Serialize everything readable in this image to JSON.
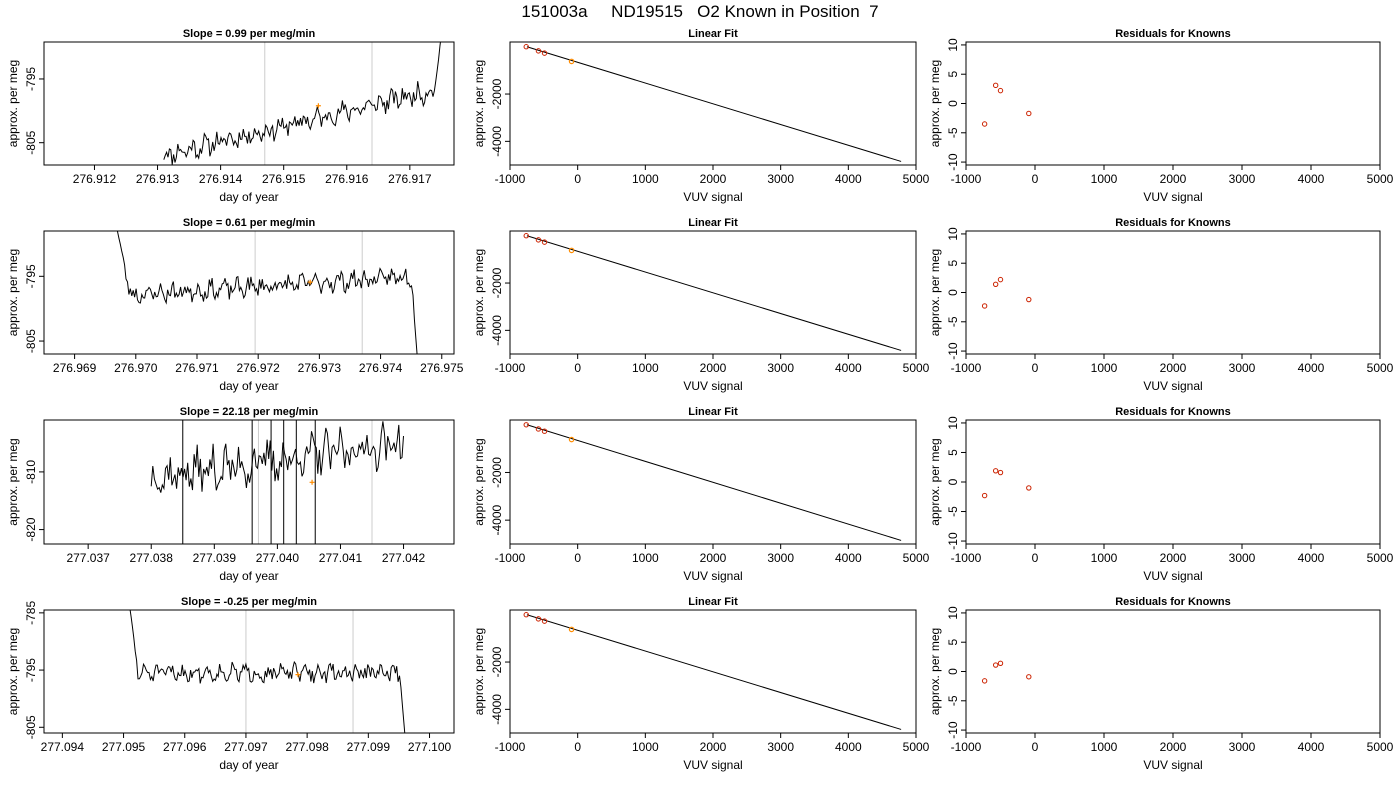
{
  "figure": {
    "title": "151003a     ND19515   O2 Known in Position  7"
  },
  "style": {
    "line_color": "#000000",
    "gridline_color": "#cccccc",
    "sample_color": "#ff8c00",
    "residual_color": "#cc2200",
    "axis_color": "#000000"
  },
  "chart_data": [
    {
      "type": "line",
      "row": 0,
      "col": 0,
      "title": "Slope =  0.99  per meg/min",
      "xlabel": "day of year",
      "ylabel": "approx. per meg",
      "xlim": [
        276.9112,
        276.9177
      ],
      "ylim": [
        -808.5,
        -789.2
      ],
      "xticks": [
        276.912,
        276.913,
        276.914,
        276.915,
        276.916,
        276.917
      ],
      "xtick_labels": [
        "276.912",
        "276.913",
        "276.914",
        "276.915",
        "276.916",
        "276.917"
      ],
      "yticks": [
        -795,
        -805
      ],
      "ytick_labels": [
        "-795",
        "-805"
      ],
      "vlines": [
        276.9147,
        276.9164
      ],
      "series": [
        {
          "x_start": 276.9131,
          "x_end": 276.9175,
          "n": 200,
          "base_start": -807.0,
          "base_end": -796.5,
          "noise": 1.3,
          "seed": 11,
          "head": null,
          "tail": {
            "to": -788.0,
            "n": 5
          }
        }
      ],
      "sample_point": [
        276.91555,
        -799.2
      ]
    },
    {
      "type": "line",
      "row": 1,
      "col": 0,
      "title": "Slope =  0.61  per meg/min",
      "xlabel": "day of year",
      "ylabel": "approx. per meg",
      "xlim": [
        276.9685,
        276.9752
      ],
      "ylim": [
        -807.0,
        -788.0
      ],
      "xticks": [
        276.969,
        276.97,
        276.971,
        276.972,
        276.973,
        276.974,
        276.975
      ],
      "xtick_labels": [
        "276.969",
        "276.970",
        "276.971",
        "276.972",
        "276.973",
        "276.974",
        "276.975"
      ],
      "yticks": [
        -795,
        -805
      ],
      "ytick_labels": [
        "-795",
        "-805"
      ],
      "vlines": [
        276.97195,
        276.9737
      ],
      "series": [
        {
          "x_start": 276.9697,
          "x_end": 276.9746,
          "n": 210,
          "base_start": -798.0,
          "base_end": -795.0,
          "noise": 1.2,
          "seed": 23,
          "head": {
            "from": -788.0,
            "n": 9
          },
          "tail": {
            "to": -807.5,
            "n": 4
          }
        }
      ],
      "sample_point": [
        276.97285,
        -795.9
      ]
    },
    {
      "type": "line",
      "row": 2,
      "col": 0,
      "title": "Slope =  22.18  per meg/min",
      "xlabel": "day of year",
      "ylabel": "approx. per meg",
      "xlim": [
        277.0363,
        277.0428
      ],
      "ylim": [
        -822.5,
        -801.0
      ],
      "xticks": [
        277.037,
        277.038,
        277.039,
        277.04,
        277.041,
        277.042
      ],
      "xtick_labels": [
        "277.037",
        "277.038",
        "277.039",
        "277.040",
        "277.041",
        "277.042"
      ],
      "yticks": [
        -810,
        -820
      ],
      "ytick_labels": [
        "-810",
        "-820"
      ],
      "vlines": [
        277.0397,
        277.0415
      ],
      "series": [
        {
          "x_start": 277.038,
          "x_end": 277.042,
          "n": 160,
          "base_start": -811.0,
          "base_end": -805.0,
          "noise": 3.0,
          "seed": 37,
          "head": null,
          "tail": null,
          "spikes": [
            277.0385,
            277.0396,
            277.0399,
            277.0401,
            277.0403,
            277.0406
          ]
        }
      ],
      "sample_point": [
        277.04055,
        -811.8
      ]
    },
    {
      "type": "line",
      "row": 3,
      "col": 0,
      "title": "Slope =  -0.25  per meg/min",
      "xlabel": "day of year",
      "ylabel": "approx. per meg",
      "xlim": [
        277.0937,
        277.1004
      ],
      "ylim": [
        -806.0,
        -784.5
      ],
      "xticks": [
        277.094,
        277.095,
        277.096,
        277.097,
        277.098,
        277.099,
        277.1
      ],
      "xtick_labels": [
        "277.094",
        "277.095",
        "277.096",
        "277.097",
        "277.098",
        "277.099",
        "277.100"
      ],
      "yticks": [
        -785,
        -795,
        -805
      ],
      "ytick_labels": [
        "-785",
        "-795",
        "-805"
      ],
      "vlines": [
        277.097,
        277.09875
      ],
      "series": [
        {
          "x_start": 277.0951,
          "x_end": 277.0996,
          "n": 200,
          "base_start": -795.5,
          "base_end": -795.5,
          "noise": 1.2,
          "seed": 51,
          "head": {
            "from": -784.0,
            "n": 6
          },
          "tail": {
            "to": -806.5,
            "n": 4
          }
        }
      ],
      "sample_point": [
        277.09785,
        -795.8
      ]
    },
    {
      "type": "scatter",
      "row": 0,
      "col": 1,
      "title": "Linear Fit",
      "xlabel": "VUV signal",
      "ylabel": "approx. per meg",
      "xlim": [
        -1000,
        5000
      ],
      "ylim": [
        -5000,
        200
      ],
      "xticks": [
        -1000,
        0,
        1000,
        2000,
        3000,
        4000,
        5000
      ],
      "xtick_labels": [
        "-1000",
        "0",
        "1000",
        "2000",
        "3000",
        "4000",
        "5000"
      ],
      "yticks": [
        -2000,
        -4000
      ],
      "ytick_labels": [
        "-2000",
        "-4000"
      ],
      "fit_line": [
        [
          -750,
          0
        ],
        [
          4780,
          -4850
        ]
      ],
      "knowns": [
        [
          -760,
          0
        ],
        [
          -580,
          -175
        ],
        [
          -490,
          -270
        ]
      ],
      "sample": [
        -90,
        -620
      ]
    },
    {
      "type": "scatter",
      "row": 1,
      "col": 1,
      "title": "Linear Fit",
      "xlabel": "VUV signal",
      "ylabel": "approx. per meg",
      "xlim": [
        -1000,
        5000
      ],
      "ylim": [
        -5000,
        200
      ],
      "xticks": [
        -1000,
        0,
        1000,
        2000,
        3000,
        4000,
        5000
      ],
      "xtick_labels": [
        "-1000",
        "0",
        "1000",
        "2000",
        "3000",
        "4000",
        "5000"
      ],
      "yticks": [
        -2000,
        -4000
      ],
      "ytick_labels": [
        "-2000",
        "-4000"
      ],
      "fit_line": [
        [
          -750,
          0
        ],
        [
          4780,
          -4850
        ]
      ],
      "knowns": [
        [
          -760,
          0
        ],
        [
          -580,
          -175
        ],
        [
          -490,
          -270
        ]
      ],
      "sample": [
        -90,
        -620
      ]
    },
    {
      "type": "scatter",
      "row": 2,
      "col": 1,
      "title": "Linear Fit",
      "xlabel": "VUV signal",
      "ylabel": "approx. per meg",
      "xlim": [
        -1000,
        5000
      ],
      "ylim": [
        -5000,
        200
      ],
      "xticks": [
        -1000,
        0,
        1000,
        2000,
        3000,
        4000,
        5000
      ],
      "xtick_labels": [
        "-1000",
        "0",
        "1000",
        "2000",
        "3000",
        "4000",
        "5000"
      ],
      "yticks": [
        -2000,
        -4000
      ],
      "ytick_labels": [
        "-2000",
        "-4000"
      ],
      "fit_line": [
        [
          -750,
          0
        ],
        [
          4780,
          -4850
        ]
      ],
      "knowns": [
        [
          -760,
          0
        ],
        [
          -580,
          -175
        ],
        [
          -490,
          -270
        ]
      ],
      "sample": [
        -90,
        -620
      ]
    },
    {
      "type": "scatter",
      "row": 3,
      "col": 1,
      "title": "Linear Fit",
      "xlabel": "VUV signal",
      "ylabel": "approx. per meg",
      "xlim": [
        -1000,
        5000
      ],
      "ylim": [
        -5000,
        200
      ],
      "xticks": [
        -1000,
        0,
        1000,
        2000,
        3000,
        4000,
        5000
      ],
      "xtick_labels": [
        "-1000",
        "0",
        "1000",
        "2000",
        "3000",
        "4000",
        "5000"
      ],
      "yticks": [
        -2000,
        -4000
      ],
      "ytick_labels": [
        "-2000",
        "-4000"
      ],
      "fit_line": [
        [
          -750,
          0
        ],
        [
          4780,
          -4850
        ]
      ],
      "knowns": [
        [
          -760,
          0
        ],
        [
          -580,
          -175
        ],
        [
          -490,
          -270
        ]
      ],
      "sample": [
        -90,
        -620
      ]
    },
    {
      "type": "scatter",
      "row": 0,
      "col": 2,
      "title": "Residuals for Knowns",
      "xlabel": "VUV signal",
      "ylabel": "approx. per meg",
      "xlim": [
        -1000,
        5000
      ],
      "ylim": [
        -10.5,
        10.5
      ],
      "xticks": [
        -1000,
        0,
        1000,
        2000,
        3000,
        4000,
        5000
      ],
      "xtick_labels": [
        "-1000",
        "0",
        "1000",
        "2000",
        "3000",
        "4000",
        "5000"
      ],
      "yticks": [
        10,
        5,
        0,
        -5,
        -10
      ],
      "ytick_labels": [
        "10",
        "5",
        "0",
        "-5",
        "-10"
      ],
      "points": [
        [
          -730,
          -3.5
        ],
        [
          -570,
          3.1
        ],
        [
          -500,
          2.2
        ],
        [
          -90,
          -1.7
        ]
      ]
    },
    {
      "type": "scatter",
      "row": 1,
      "col": 2,
      "title": "Residuals for Knowns",
      "xlabel": "VUV signal",
      "ylabel": "approx. per meg",
      "xlim": [
        -1000,
        5000
      ],
      "ylim": [
        -10.5,
        10.5
      ],
      "xticks": [
        -1000,
        0,
        1000,
        2000,
        3000,
        4000,
        5000
      ],
      "xtick_labels": [
        "-1000",
        "0",
        "1000",
        "2000",
        "3000",
        "4000",
        "5000"
      ],
      "yticks": [
        10,
        5,
        0,
        -5,
        -10
      ],
      "ytick_labels": [
        "10",
        "5",
        "0",
        "-5",
        "-10"
      ],
      "points": [
        [
          -730,
          -2.3
        ],
        [
          -570,
          1.4
        ],
        [
          -500,
          2.2
        ],
        [
          -90,
          -1.2
        ]
      ]
    },
    {
      "type": "scatter",
      "row": 2,
      "col": 2,
      "title": "Residuals for Knowns",
      "xlabel": "VUV signal",
      "ylabel": "approx. per meg",
      "xlim": [
        -1000,
        5000
      ],
      "ylim": [
        -10.5,
        10.5
      ],
      "xticks": [
        -1000,
        0,
        1000,
        2000,
        3000,
        4000,
        5000
      ],
      "xtick_labels": [
        "-1000",
        "0",
        "1000",
        "2000",
        "3000",
        "4000",
        "5000"
      ],
      "yticks": [
        10,
        5,
        0,
        -5,
        -10
      ],
      "ytick_labels": [
        "10",
        "5",
        "0",
        "-5",
        "-10"
      ],
      "points": [
        [
          -730,
          -2.3
        ],
        [
          -570,
          1.9
        ],
        [
          -500,
          1.6
        ],
        [
          -90,
          -1.0
        ]
      ]
    },
    {
      "type": "scatter",
      "row": 3,
      "col": 2,
      "title": "Residuals for Knowns",
      "xlabel": "VUV signal",
      "ylabel": "approx. per meg",
      "xlim": [
        -1000,
        5000
      ],
      "ylim": [
        -10.5,
        10.5
      ],
      "xticks": [
        -1000,
        0,
        1000,
        2000,
        3000,
        4000,
        5000
      ],
      "xtick_labels": [
        "-1000",
        "0",
        "1000",
        "2000",
        "3000",
        "4000",
        "5000"
      ],
      "yticks": [
        10,
        5,
        0,
        -5,
        -10
      ],
      "ytick_labels": [
        "10",
        "5",
        "0",
        "-5",
        "-10"
      ],
      "points": [
        [
          -730,
          -1.6
        ],
        [
          -570,
          1.1
        ],
        [
          -500,
          1.4
        ],
        [
          -90,
          -0.9
        ]
      ]
    }
  ]
}
